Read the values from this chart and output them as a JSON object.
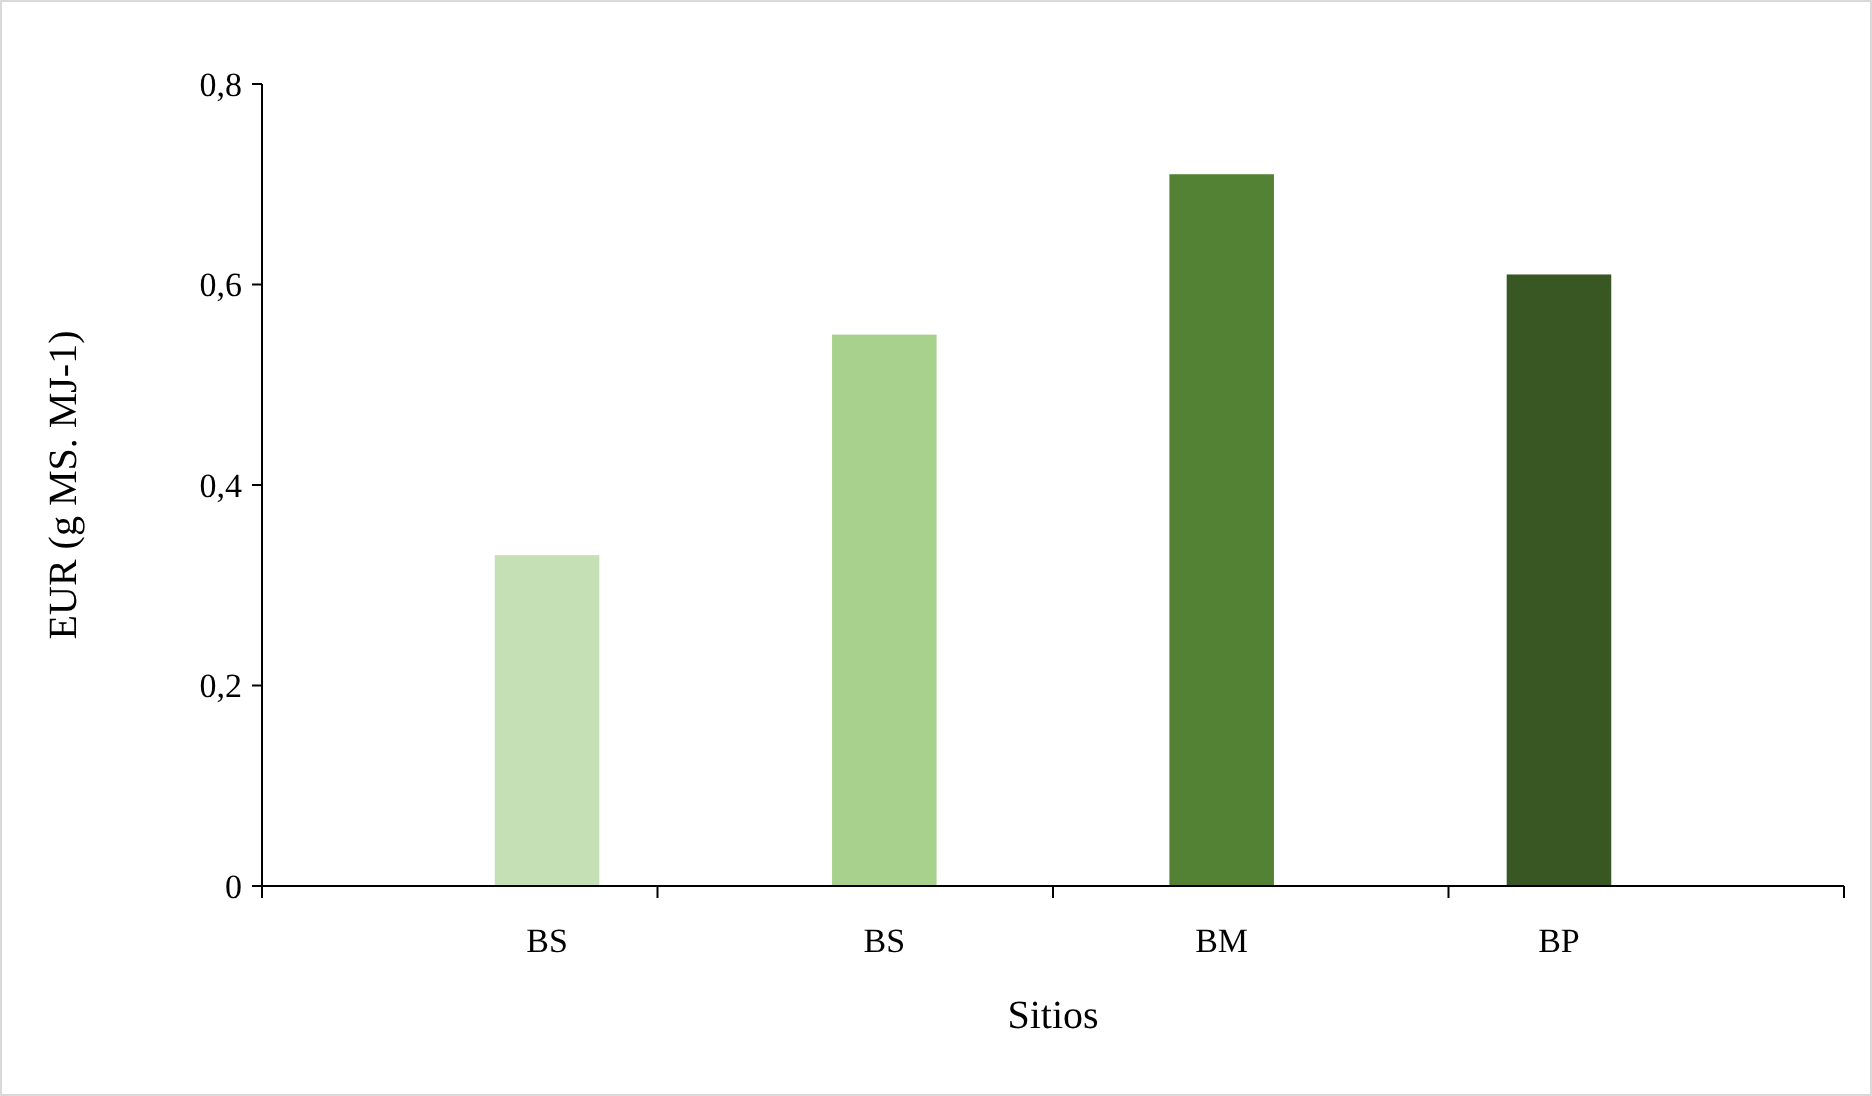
{
  "chart_data": {
    "type": "bar",
    "xlabel": "Sitios",
    "ylabel": "EUR (g MS. MJ-1)",
    "categories": [
      "BS",
      "BS",
      "BM",
      "BP"
    ],
    "values": [
      0.33,
      0.55,
      0.71,
      0.61
    ],
    "colors": [
      "#c5e0b4",
      "#a9d18e",
      "#548235",
      "#385723"
    ],
    "ylim": [
      0,
      0.8
    ],
    "yticks": [
      0,
      {
        "value": 0.2,
        "label": "0,2"
      },
      {
        "value": 0.4,
        "label": "0,4"
      },
      {
        "value": 0.6,
        "label": "0,6"
      },
      {
        "value": 0.8,
        "label": "0,8"
      }
    ],
    "grid": false
  }
}
